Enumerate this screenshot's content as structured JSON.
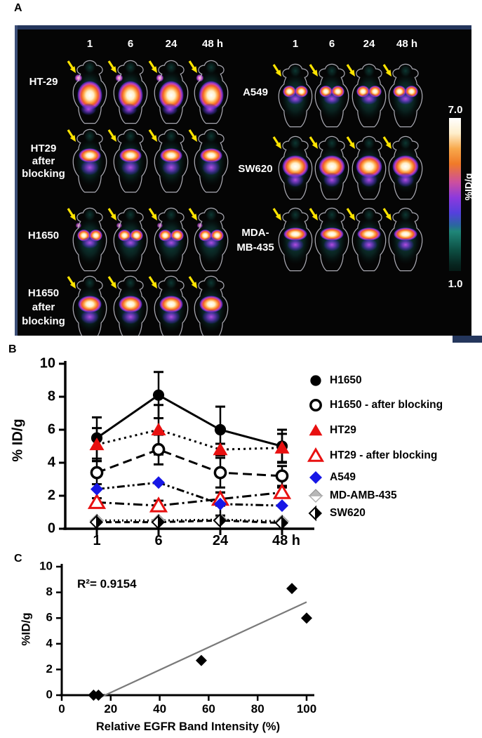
{
  "panel_a": {
    "label": "A",
    "time_labels": [
      "1",
      "6",
      "24",
      "48 h"
    ],
    "left_rows": [
      {
        "id": "ht-29",
        "label_lines": [
          "HT-29"
        ],
        "pattern": "abdomen-large",
        "tumor": "visible"
      },
      {
        "id": "ht29-after-blocking",
        "label_lines": [
          "HT29",
          "after",
          "blocking"
        ],
        "pattern": "upper-band",
        "tumor": "none"
      },
      {
        "id": "h1650",
        "label_lines": [
          "H1650"
        ],
        "pattern": "chest-lobes",
        "tumor": "small"
      },
      {
        "id": "h1650-after-blocking",
        "label_lines": [
          "H1650",
          "after",
          "blocking"
        ],
        "pattern": "upper-band-large",
        "tumor": "none"
      }
    ],
    "right_rows": [
      {
        "id": "a549",
        "label_lines": [
          "A549"
        ],
        "pattern": "chest-lobes",
        "tumor": "none"
      },
      {
        "id": "sw620",
        "label_lines": [
          "SW620"
        ],
        "pattern": "big-bright",
        "tumor": "none"
      },
      {
        "id": "mda-mb-435",
        "label_lines": [
          "MDA-",
          "MB-435"
        ],
        "pattern": "chest-band",
        "tumor": "none"
      }
    ],
    "colorbar": {
      "max_label": "7.0",
      "min_label": "1.0",
      "unit_label": "%ID/g"
    },
    "colors": {
      "background": "#050505",
      "border_strip": "#24365c",
      "outline": "#c8c8d2",
      "arrow": "#ffe400",
      "label_text": "#ffffff"
    }
  },
  "panel_b": {
    "label": "B"
  },
  "panel_c": {
    "label": "C"
  },
  "chart_data": [
    {
      "type": "line",
      "panel": "B",
      "title": "",
      "xlabel": "",
      "ylabel": "% ID/g",
      "categories": [
        1,
        6,
        24,
        48
      ],
      "x_tick_labels": [
        "1",
        "6",
        "24",
        "48 h"
      ],
      "ylim": [
        0,
        10
      ],
      "yticks": [
        0,
        2,
        4,
        6,
        8,
        10
      ],
      "grid": false,
      "legend_position": "right",
      "series": [
        {
          "name": "H1650",
          "marker": "filled-circle",
          "color": "#000000",
          "line": "solid",
          "values": [
            5.5,
            8.1,
            6.0,
            5.0
          ],
          "errors": [
            1.25,
            1.4,
            1.4,
            1.0
          ]
        },
        {
          "name": "H1650 - after blocking",
          "marker": "open-circle",
          "color": "#000000",
          "line": "dashed",
          "values": [
            3.4,
            4.8,
            3.4,
            3.2
          ],
          "errors": [
            0.7,
            0.9,
            0.9,
            0.6
          ]
        },
        {
          "name": "HT29",
          "marker": "filled-triangle",
          "color": "#e81010",
          "line": "dotted",
          "values": [
            5.1,
            6.0,
            4.8,
            4.9
          ],
          "errors": [
            1.0,
            1.5,
            0.35,
            0.85
          ]
        },
        {
          "name": "HT29 - after blocking",
          "marker": "open-triangle",
          "color": "#e81010",
          "line": "dashdot",
          "values": [
            1.6,
            1.4,
            1.8,
            2.2
          ],
          "errors": [
            0.25,
            0.3,
            0.4,
            0.3
          ]
        },
        {
          "name": "A549",
          "marker": "filled-diamond",
          "color": "#1717e6",
          "line": "dashdotdot",
          "values": [
            2.4,
            2.8,
            1.5,
            1.4
          ],
          "errors": [
            0,
            0,
            0.7,
            0
          ]
        },
        {
          "name": "MD-AMB-435",
          "marker": "gray-diamond",
          "color": "#b8b8b8",
          "line": "dense-dotted",
          "values": [
            0.5,
            0.5,
            0.55,
            0.45
          ],
          "errors": [
            0,
            0,
            0,
            0
          ]
        },
        {
          "name": "SW620",
          "marker": "half-diamond",
          "color": "#000000",
          "line": "short-dash",
          "values": [
            0.4,
            0.4,
            0.5,
            0.35
          ],
          "errors": [
            0,
            0,
            0,
            0
          ]
        }
      ]
    },
    {
      "type": "scatter",
      "panel": "C",
      "annotation": "R²= 0.9154",
      "xlabel": "Relative EGFR Band Intensity (%)",
      "ylabel": "%ID/g",
      "xlim": [
        0,
        105
      ],
      "ylim": [
        0,
        10
      ],
      "xticks": [
        0,
        20,
        40,
        60,
        80,
        100
      ],
      "yticks": [
        0,
        2,
        4,
        6,
        8,
        10
      ],
      "marker": "filled-diamond",
      "marker_color": "#000000",
      "points": [
        [
          13,
          0
        ],
        [
          15,
          0
        ],
        [
          57,
          2.7
        ],
        [
          94,
          8.3
        ],
        [
          100,
          6.0
        ]
      ],
      "trendline": {
        "x1": 16,
        "y1": -0.15,
        "x2": 100,
        "y2": 7.25,
        "color": "#7a7a7a"
      }
    }
  ]
}
